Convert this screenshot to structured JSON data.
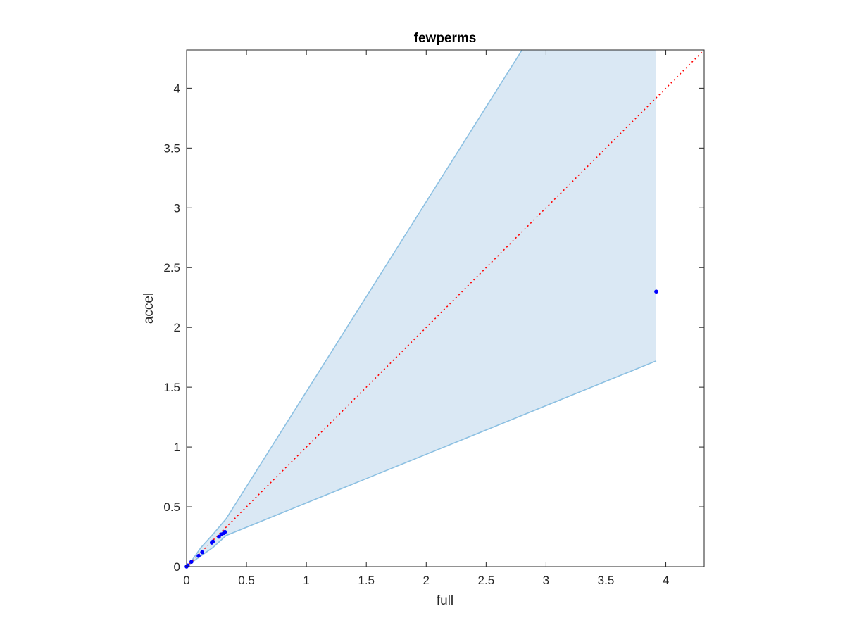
{
  "chart_data": {
    "type": "scatter",
    "title": "fewperms",
    "xlabel": "full",
    "ylabel": "accel",
    "xlim": [
      0,
      4.32
    ],
    "ylim": [
      0,
      4.32
    ],
    "xticks": [
      0,
      0.5,
      1,
      1.5,
      2,
      2.5,
      3,
      3.5,
      4
    ],
    "xtick_labels": [
      "0",
      "0.5",
      "1",
      "1.5",
      "2",
      "2.5",
      "3",
      "3.5",
      "4"
    ],
    "yticks": [
      0,
      0.5,
      1,
      1.5,
      2,
      2.5,
      3,
      3.5,
      4
    ],
    "ytick_labels": [
      "0",
      "0.5",
      "1",
      "1.5",
      "2",
      "2.5",
      "3",
      "3.5",
      "4"
    ],
    "grid": false,
    "box": true,
    "band": {
      "color": "#dae8f4",
      "edge_color": "#8cc0e2",
      "upper": [
        [
          0,
          0
        ],
        [
          0.05,
          0.06
        ],
        [
          0.12,
          0.16
        ],
        [
          0.22,
          0.27
        ],
        [
          0.33,
          0.4
        ],
        [
          2.8,
          4.32
        ],
        [
          3.92,
          4.32
        ]
      ],
      "lower": [
        [
          0,
          0
        ],
        [
          0.05,
          0.04
        ],
        [
          0.12,
          0.09
        ],
        [
          0.22,
          0.16
        ],
        [
          0.33,
          0.26
        ],
        [
          3.92,
          1.72
        ]
      ]
    },
    "identity_line": {
      "from": [
        0,
        0
      ],
      "to": [
        4.32,
        4.32
      ],
      "color": "#ff0000",
      "style": "dotted"
    },
    "series": [
      {
        "color": "#0000ff",
        "x": [
          0,
          0.01,
          0.04,
          0.1,
          0.13,
          0.21,
          0.22,
          0.27,
          0.29,
          0.31,
          0.32,
          3.92
        ],
        "y": [
          0,
          0.01,
          0.04,
          0.09,
          0.12,
          0.2,
          0.21,
          0.25,
          0.27,
          0.28,
          0.29,
          2.3
        ]
      }
    ]
  }
}
